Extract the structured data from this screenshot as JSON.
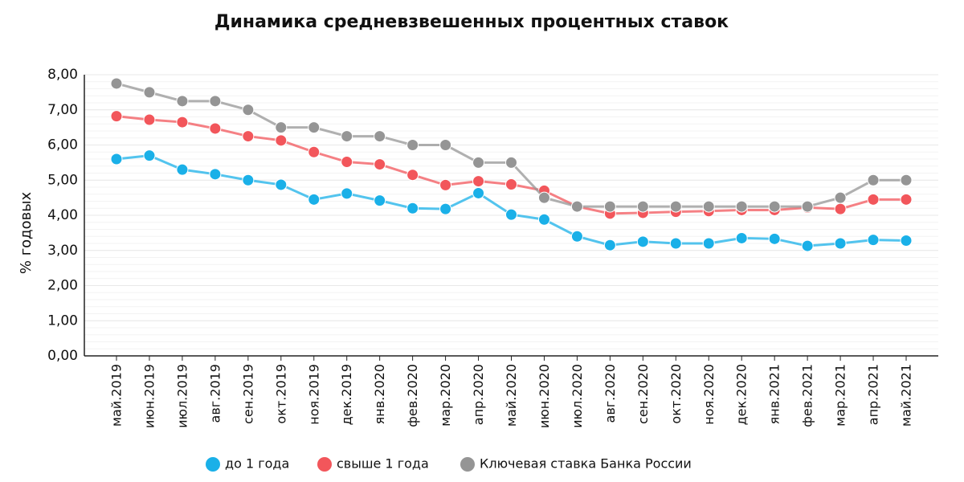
{
  "chart_data": {
    "type": "line",
    "title": "Динамика средневзвешенных процентных ставок",
    "y_label": "% годовых",
    "categories": [
      "май.2019",
      "июн.2019",
      "июл.2019",
      "авг.2019",
      "сен.2019",
      "окт.2019",
      "ноя.2019",
      "дек.2019",
      "янв.2020",
      "фев.2020",
      "мар.2020",
      "апр.2020",
      "май.2020",
      "июн.2020",
      "июл.2020",
      "авг.2020",
      "сен.2020",
      "окт.2020",
      "ноя.2020",
      "дек.2020",
      "янв.2021",
      "фев.2021",
      "мар.2021",
      "апр.2021",
      "май.2021"
    ],
    "series": [
      {
        "name": "до 1 года",
        "color": "#1ab0e8",
        "values": [
          5.6,
          5.7,
          5.3,
          5.17,
          5.0,
          4.87,
          4.45,
          4.62,
          4.42,
          4.2,
          4.18,
          4.63,
          4.02,
          3.88,
          3.4,
          3.15,
          3.25,
          3.2,
          3.2,
          3.35,
          3.33,
          3.13,
          3.2,
          3.3,
          3.28
        ]
      },
      {
        "name": "свыше 1 года",
        "color": "#f2565b",
        "values": [
          6.82,
          6.72,
          6.65,
          6.47,
          6.25,
          6.13,
          5.8,
          5.52,
          5.45,
          5.15,
          4.86,
          4.97,
          4.88,
          4.7,
          4.25,
          4.05,
          4.07,
          4.1,
          4.12,
          4.15,
          4.15,
          4.22,
          4.18,
          4.45,
          4.45
        ]
      },
      {
        "name": "Ключевая ставка Банка России",
        "color": "#959595",
        "values": [
          7.75,
          7.5,
          7.25,
          7.25,
          7.0,
          6.5,
          6.5,
          6.25,
          6.25,
          6.0,
          6.0,
          5.5,
          5.5,
          4.5,
          4.25,
          4.25,
          4.25,
          4.25,
          4.25,
          4.25,
          4.25,
          4.25,
          4.5,
          5.0,
          5.0
        ]
      }
    ],
    "ylim": [
      0,
      8
    ],
    "yticks": [
      {
        "value": 0,
        "label": "0,00"
      },
      {
        "value": 1,
        "label": "1,00"
      },
      {
        "value": 2,
        "label": "2,00"
      },
      {
        "value": 3,
        "label": "3,00"
      },
      {
        "value": 4,
        "label": "4,00"
      },
      {
        "value": 5,
        "label": "5,00"
      },
      {
        "value": 6,
        "label": "6,00"
      },
      {
        "value": 7,
        "label": "7,00"
      },
      {
        "value": 8,
        "label": "8,00"
      }
    ],
    "grid": true,
    "legend": "bottom"
  }
}
